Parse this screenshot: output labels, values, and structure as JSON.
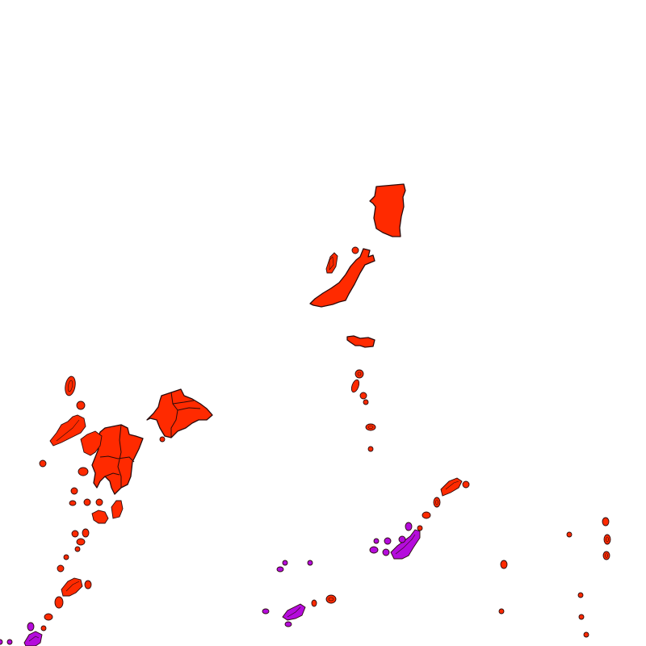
{
  "map": {
    "colors": {
      "background": "#ffffff",
      "category_primary": "#ff2a00",
      "category_secondary": "#b40cdc",
      "outline": "#2a0a0a"
    },
    "legend": null,
    "title": null
  }
}
